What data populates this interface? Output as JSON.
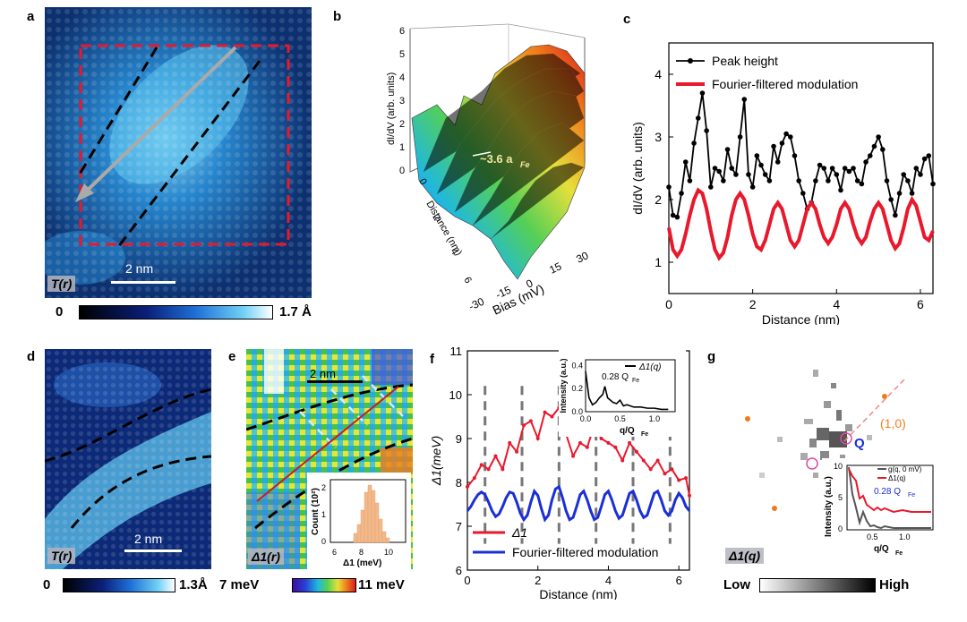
{
  "panels": {
    "a": {
      "label": "a",
      "tag": "T(r)",
      "scalebar": "2 nm",
      "cbar_min": "0",
      "cbar_max": "1.7 Å"
    },
    "b": {
      "label": "b",
      "zlabel": "dI/dV (arb. units)",
      "ylabel": "Distance (nm)",
      "xlabel": "Bias (mV)",
      "xticks": [
        "-30",
        "-15",
        "0",
        "15",
        "30"
      ],
      "zticks": [
        "0",
        "1",
        "2",
        "3",
        "4",
        "5",
        "6"
      ],
      "yticks": [
        "0",
        "2",
        "4",
        "6"
      ],
      "annotation": "~3.6 a",
      "annotation_sub": "Fe"
    },
    "d": {
      "label": "d",
      "tag": "T(r)",
      "scalebar": "2 nm",
      "cbar_min": "0",
      "cbar_max": "1.3Å"
    },
    "e": {
      "label": "e",
      "tag": "Δ1(r)",
      "scalebar": "2 nm",
      "cbar_min": "7 meV",
      "cbar_max": "11 meV",
      "inset": {
        "ylabel": "Count (10²)",
        "xlabel": "Δ1 (meV)",
        "xticks": [
          "6",
          "8",
          "10"
        ],
        "yticks": [
          "0",
          "1",
          "2"
        ]
      }
    },
    "g": {
      "label": "g",
      "tag": "Δ1(q)",
      "peak_label": "(1,0)",
      "q_label": "Q",
      "cbar_min": "Low",
      "cbar_max": "High",
      "inset": {
        "ylabel": "Intensity (a.u.)",
        "xlabel": "q/Q",
        "xlabel_sub": "Fe",
        "legend1": "g(q, 0 mV)",
        "legend2": "Δ1(q)",
        "annotation": "0.28 Q",
        "annotation_sub": "Fe",
        "xticks": [
          "0.5",
          "1.0"
        ],
        "yticks": [
          "0",
          "5",
          "10"
        ]
      }
    }
  },
  "chart_data": [
    {
      "type": "line",
      "panel": "c",
      "label": "c",
      "xlabel": "Distance (nm)",
      "ylabel": "dI/dV (arb. units)",
      "xlim": [
        0,
        6.3
      ],
      "ylim": [
        0.5,
        4.5
      ],
      "xticks": [
        "0",
        "2",
        "4",
        "6"
      ],
      "yticks": [
        "1",
        "2",
        "3",
        "4"
      ],
      "series": [
        {
          "name": "Peak height",
          "color": "#000000",
          "marker": true,
          "x": [
            0,
            0.1,
            0.2,
            0.3,
            0.4,
            0.5,
            0.6,
            0.7,
            0.8,
            0.9,
            1.0,
            1.1,
            1.2,
            1.3,
            1.4,
            1.5,
            1.6,
            1.7,
            1.8,
            1.9,
            2.0,
            2.1,
            2.2,
            2.3,
            2.4,
            2.5,
            2.6,
            2.7,
            2.8,
            2.9,
            3.0,
            3.1,
            3.2,
            3.3,
            3.4,
            3.5,
            3.6,
            3.7,
            3.8,
            3.9,
            4.0,
            4.1,
            4.2,
            4.3,
            4.4,
            4.5,
            4.6,
            4.7,
            4.8,
            4.9,
            5.0,
            5.1,
            5.2,
            5.3,
            5.4,
            5.5,
            5.6,
            5.7,
            5.8,
            5.9,
            6.0,
            6.1,
            6.2,
            6.3
          ],
          "y": [
            2.2,
            1.75,
            1.72,
            2.1,
            2.6,
            2.3,
            2.9,
            3.3,
            3.7,
            3.1,
            2.2,
            2.5,
            2.45,
            2.3,
            2.8,
            2.5,
            2.4,
            3.0,
            3.6,
            2.4,
            2.2,
            2.7,
            2.55,
            2.4,
            2.3,
            2.85,
            2.6,
            2.9,
            3.05,
            3.0,
            2.7,
            2.3,
            2.1,
            1.85,
            1.95,
            2.3,
            2.55,
            2.5,
            2.3,
            2.5,
            2.4,
            2.15,
            2.5,
            2.45,
            2.5,
            2.3,
            2.25,
            2.6,
            2.7,
            2.85,
            3.0,
            2.8,
            2.3,
            2.0,
            1.75,
            2.1,
            2.4,
            2.3,
            2.1,
            2.5,
            2.4,
            2.65,
            2.7,
            2.25
          ]
        },
        {
          "name": "Fourier-filtered modulation",
          "color": "#e8192c",
          "marker": false,
          "x": [
            0,
            0.1,
            0.2,
            0.3,
            0.4,
            0.5,
            0.6,
            0.7,
            0.8,
            0.9,
            1.0,
            1.1,
            1.2,
            1.3,
            1.4,
            1.5,
            1.6,
            1.7,
            1.8,
            1.9,
            2.0,
            2.1,
            2.2,
            2.3,
            2.4,
            2.5,
            2.6,
            2.7,
            2.8,
            2.9,
            3.0,
            3.1,
            3.2,
            3.3,
            3.4,
            3.5,
            3.6,
            3.7,
            3.8,
            3.9,
            4.0,
            4.1,
            4.2,
            4.3,
            4.4,
            4.5,
            4.6,
            4.7,
            4.8,
            4.9,
            5.0,
            5.1,
            5.2,
            5.3,
            5.4,
            5.5,
            5.6,
            5.7,
            5.8,
            5.9,
            6.0,
            6.1,
            6.2,
            6.3
          ],
          "y": [
            1.55,
            1.2,
            1.1,
            1.2,
            1.45,
            1.75,
            2.0,
            2.15,
            2.1,
            1.85,
            1.5,
            1.2,
            1.07,
            1.15,
            1.4,
            1.75,
            2.0,
            2.1,
            2.0,
            1.75,
            1.45,
            1.25,
            1.2,
            1.35,
            1.6,
            1.85,
            1.95,
            1.85,
            1.6,
            1.35,
            1.25,
            1.35,
            1.6,
            1.85,
            1.95,
            1.85,
            1.6,
            1.4,
            1.3,
            1.4,
            1.6,
            1.85,
            1.95,
            1.85,
            1.6,
            1.4,
            1.3,
            1.4,
            1.65,
            1.85,
            1.95,
            1.85,
            1.6,
            1.35,
            1.22,
            1.3,
            1.55,
            1.85,
            2.0,
            1.9,
            1.65,
            1.4,
            1.35,
            1.5
          ]
        }
      ]
    },
    {
      "type": "line",
      "panel": "f",
      "label": "f",
      "xlabel": "Distance (nm)",
      "ylabel": "Δ1(meV)",
      "xlim": [
        0,
        6.3
      ],
      "ylim": [
        6,
        11
      ],
      "xticks": [
        "0",
        "2",
        "4",
        "6"
      ],
      "yticks": [
        "6",
        "7",
        "8",
        "9",
        "10",
        "11"
      ],
      "dashed_x": [
        0.5,
        1.55,
        2.6,
        3.65,
        4.7,
        5.75
      ],
      "series": [
        {
          "name": "Δ1",
          "color": "#e8192c",
          "x": [
            0.0,
            0.2,
            0.4,
            0.6,
            0.8,
            1.0,
            1.2,
            1.4,
            1.6,
            1.8,
            2.0,
            2.2,
            2.4,
            2.6,
            2.8,
            3.0,
            3.2,
            3.4,
            3.6,
            3.8,
            4.0,
            4.2,
            4.4,
            4.6,
            4.8,
            5.0,
            5.2,
            5.4,
            5.6,
            5.8,
            6.0,
            6.2,
            6.3
          ],
          "y": [
            7.9,
            8.1,
            8.4,
            8.3,
            8.6,
            8.3,
            8.9,
            8.7,
            9.3,
            9.4,
            9.0,
            9.6,
            9.5,
            9.7,
            9.1,
            8.6,
            8.9,
            8.8,
            9.3,
            9.0,
            8.9,
            8.8,
            8.5,
            8.9,
            8.7,
            8.5,
            8.3,
            8.5,
            8.2,
            8.3,
            8.05,
            8.1,
            7.7
          ]
        },
        {
          "name": "Fourier-filtered modulation",
          "color": "#1a2fd6",
          "x": [
            0.0,
            0.1,
            0.2,
            0.3,
            0.4,
            0.5,
            0.6,
            0.7,
            0.8,
            0.9,
            1.0,
            1.1,
            1.2,
            1.3,
            1.4,
            1.5,
            1.6,
            1.7,
            1.8,
            1.9,
            2.0,
            2.1,
            2.2,
            2.3,
            2.4,
            2.5,
            2.6,
            2.7,
            2.8,
            2.9,
            3.0,
            3.1,
            3.2,
            3.3,
            3.4,
            3.5,
            3.6,
            3.7,
            3.8,
            3.9,
            4.0,
            4.1,
            4.2,
            4.3,
            4.4,
            4.5,
            4.6,
            4.7,
            4.8,
            4.9,
            5.0,
            5.1,
            5.2,
            5.3,
            5.4,
            5.5,
            5.6,
            5.7,
            5.8,
            5.9,
            6.0,
            6.1,
            6.2,
            6.3
          ],
          "y": [
            7.35,
            7.45,
            7.6,
            7.72,
            7.78,
            7.72,
            7.55,
            7.35,
            7.22,
            7.28,
            7.45,
            7.65,
            7.78,
            7.75,
            7.55,
            7.3,
            7.15,
            7.25,
            7.55,
            7.8,
            7.7,
            7.4,
            7.15,
            7.25,
            7.6,
            7.85,
            7.9,
            7.65,
            7.35,
            7.15,
            7.2,
            7.45,
            7.72,
            7.8,
            7.6,
            7.35,
            7.15,
            7.2,
            7.45,
            7.72,
            7.8,
            7.6,
            7.35,
            7.18,
            7.25,
            7.5,
            7.75,
            7.8,
            7.6,
            7.35,
            7.2,
            7.25,
            7.5,
            7.75,
            7.8,
            7.6,
            7.35,
            7.25,
            7.35,
            7.6,
            7.75,
            7.65,
            7.45,
            7.35
          ]
        }
      ],
      "inset": {
        "type": "line",
        "xlabel": "q/Q",
        "xlabel_sub": "Fe",
        "ylabel": "Intensity (a.u.)",
        "legend": "Δ1(q)",
        "annotation": "0.28 Q",
        "annotation_sub": "Fe",
        "xticks": [
          "0.0",
          "0.5",
          "1.0"
        ],
        "yticks": [
          "0.0",
          "0.2",
          "0.4"
        ],
        "x": [
          0.0,
          0.05,
          0.1,
          0.15,
          0.2,
          0.25,
          0.28,
          0.32,
          0.36,
          0.4,
          0.45,
          0.5,
          0.55,
          0.6,
          0.7,
          0.8,
          0.9,
          1.0,
          1.1,
          1.2
        ],
        "y": [
          0.35,
          0.12,
          0.06,
          0.08,
          0.12,
          0.15,
          0.22,
          0.12,
          0.1,
          0.08,
          0.07,
          0.1,
          0.05,
          0.06,
          0.04,
          0.04,
          0.03,
          0.03,
          0.02,
          0.02
        ]
      }
    }
  ]
}
